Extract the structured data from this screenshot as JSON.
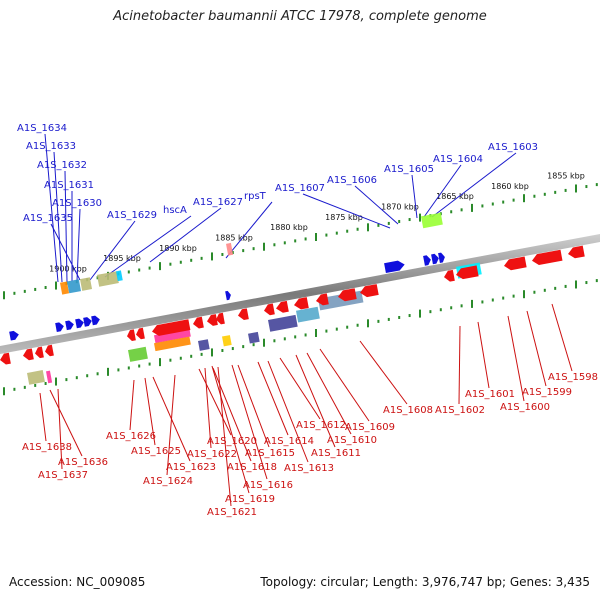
{
  "title": "Acinetobacter baumannii ATCC 17978, complete genome",
  "accession": "Accession: NC_009085",
  "topology": "Topology: circular; Length: 3,976,747 bp; Genes: 3,435",
  "kbp_labels": [
    "1855 kbp",
    "1860 kbp",
    "1865 kbp",
    "1870 kbp",
    "1875 kbp",
    "1880 kbp",
    "1885 kbp",
    "1890 kbp",
    "1895 kbp",
    "1900 kbp"
  ],
  "top_labels": [
    "A1S_1634",
    "A1S_1633",
    "A1S_1632",
    "A1S_1631",
    "A1S_1630",
    "A1S_1635",
    "A1S_1629",
    "hscA",
    "A1S_1627",
    "rpsT",
    "A1S_1607",
    "A1S_1606",
    "A1S_1605",
    "A1S_1604",
    "A1S_1603"
  ],
  "bottom_labels": [
    "A1S_1638",
    "A1S_1636",
    "A1S_1637",
    "A1S_1626",
    "A1S_1625",
    "A1S_1623",
    "A1S_1624",
    "A1S_1620",
    "A1S_1622",
    "A1S_1618",
    "A1S_1619",
    "A1S_1621",
    "A1S_1616",
    "A1S_1615",
    "A1S_1614",
    "A1S_1613",
    "A1S_1612",
    "A1S_1611",
    "A1S_1610",
    "A1S_1609",
    "A1S_1608",
    "A1S_1602",
    "A1S_1601",
    "A1S_1600",
    "A1S_1599",
    "A1S_1598"
  ],
  "colors": {
    "forward": "#1010dd",
    "reverse": "#ee1111",
    "backbone": "#888888",
    "tick": "#2a8a2a",
    "top_label": "#1a1acc",
    "bottom_label": "#cc1111"
  },
  "domain_bar_colors": [
    "#ff8800",
    "#3399cc",
    "#bbbb77",
    "#ffcc00",
    "#00ccff",
    "#ff3399",
    "#66cc33",
    "#444499",
    "#55aacc",
    "#7799bb",
    "#99ff33",
    "#00eeff"
  ]
}
